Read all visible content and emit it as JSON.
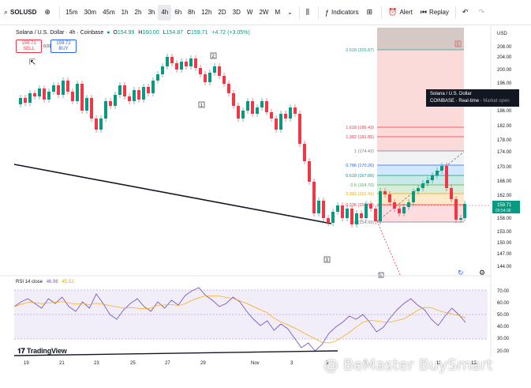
{
  "toolbar": {
    "symbol": "SOLUSD",
    "timeframes": [
      "15m",
      "30m",
      "45m",
      "1h",
      "2h",
      "3h",
      "4h",
      "6h",
      "8h",
      "12h",
      "2D",
      "3D",
      "W",
      "2W",
      "M"
    ],
    "active_timeframe": "4h",
    "indicators_label": "Indicators",
    "alert_label": "Alert",
    "replay_label": "Replay"
  },
  "legend": {
    "title": "Solana / U.S. Dollar · 4h · Coinbase",
    "open_label": "O",
    "open": "154.99",
    "high_label": "H",
    "high": "160.00",
    "low_label": "L",
    "low": "154.87",
    "close_label": "C",
    "close": "159.71",
    "change": "+4.72 (+3.05%)"
  },
  "trade": {
    "sell_price": "159.71",
    "sell_label": "SELL",
    "buy_price": "159.72",
    "buy_label": "BUY",
    "spread": "0.01"
  },
  "price_axis": {
    "currency": "USD",
    "ticks": [
      "208.00",
      "204.00",
      "200.00",
      "196.00",
      "190.00",
      "186.00",
      "182.00",
      "178.00",
      "174.00",
      "170.00",
      "166.00",
      "162.00",
      "158.00",
      "153.00",
      "150.00",
      "147.00",
      "144.00"
    ],
    "current_price": "159.71",
    "current_sub": "00:54:38"
  },
  "fib_levels": [
    {
      "label": "2.618 (205.87)",
      "color": "#26a69a"
    },
    {
      "label": "1.618 (186.43)",
      "color": "#f23645"
    },
    {
      "label": "1.382 (181.85)",
      "color": "#f23645"
    },
    {
      "label": "1 (174.42)",
      "color": "#787b86"
    },
    {
      "label": "0.786 (170.26)",
      "color": "#2962ff"
    },
    {
      "label": "0.618 (167.00)",
      "color": "#089981"
    },
    {
      "label": "0.5 (164.70)",
      "color": "#4caf50"
    },
    {
      "label": "0.382 (162.41)",
      "color": "#f7a600"
    },
    {
      "label": "0.236 (159.57)",
      "color": "#f23645"
    },
    {
      "label": "0 (154.99)",
      "color": "#787b86"
    }
  ],
  "tooltip": {
    "title": "Solana / U.S. Dollar",
    "exchange": "COINBASE",
    "feed": "Real-time",
    "status": "Market open"
  },
  "wave_labels": [
    "2",
    "1",
    "3",
    "5",
    "5"
  ],
  "rsi": {
    "label": "RSI 14 close",
    "value": "46.96",
    "ma": "45.52",
    "ticks": [
      "70.00",
      "60.00",
      "50.00",
      "40.00",
      "30.00",
      "20.00"
    ]
  },
  "time_axis": [
    "19",
    "21",
    "23",
    "25",
    "27",
    "29",
    "Nov",
    "3",
    "5",
    "7",
    "11",
    "13"
  ],
  "branding": {
    "logo_text": "TradingView",
    "watermark": "@ BeMaster BuySmart"
  },
  "colors": {
    "up": "#089981",
    "down": "#f23645",
    "rsi": "#7e57c2",
    "rsi_ma": "#f7a600"
  }
}
